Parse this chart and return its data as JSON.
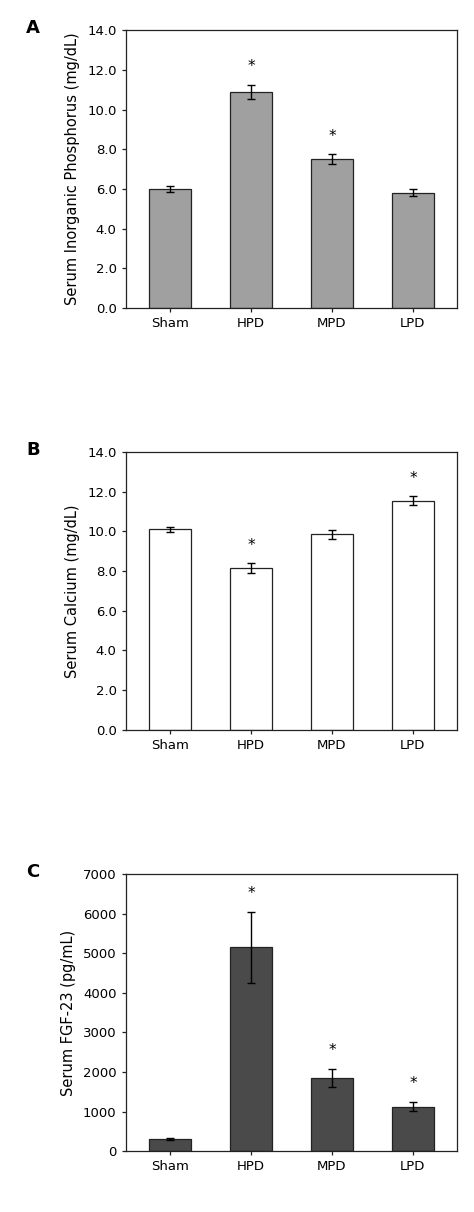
{
  "panel_A": {
    "label": "A",
    "categories": [
      "Sham",
      "HPD",
      "MPD",
      "LPD"
    ],
    "values": [
      6.0,
      10.9,
      7.5,
      5.8
    ],
    "errors": [
      0.15,
      0.35,
      0.25,
      0.18
    ],
    "bar_color": "#a0a0a0",
    "bar_edgecolor": "#222222",
    "ylabel": "Serum Inorganic Phosphorus (mg/dL)",
    "ylim": [
      0,
      14.0
    ],
    "yticks": [
      0.0,
      2.0,
      4.0,
      6.0,
      8.0,
      10.0,
      12.0,
      14.0
    ],
    "ytick_labels": [
      "0.0",
      "2.0",
      "4.0",
      "6.0",
      "8.0",
      "10.0",
      "12.0",
      "14.0"
    ],
    "sig_bars": [
      1,
      2
    ],
    "sig_symbol": "*"
  },
  "panel_B": {
    "label": "B",
    "categories": [
      "Sham",
      "HPD",
      "MPD",
      "LPD"
    ],
    "values": [
      10.1,
      8.15,
      9.85,
      11.55
    ],
    "errors": [
      0.12,
      0.25,
      0.22,
      0.22
    ],
    "bar_color": "#ffffff",
    "bar_edgecolor": "#222222",
    "ylabel": "Serum Calcium (mg/dL)",
    "ylim": [
      0,
      14.0
    ],
    "yticks": [
      0.0,
      2.0,
      4.0,
      6.0,
      8.0,
      10.0,
      12.0,
      14.0
    ],
    "ytick_labels": [
      "0.0",
      "2.0",
      "4.0",
      "6.0",
      "8.0",
      "10.0",
      "12.0",
      "14.0"
    ],
    "sig_bars": [
      1,
      3
    ],
    "sig_symbol": "*"
  },
  "panel_C": {
    "label": "C",
    "categories": [
      "Sham",
      "HPD",
      "MPD",
      "LPD"
    ],
    "values": [
      320,
      5150,
      1850,
      1130
    ],
    "errors": [
      30,
      900,
      230,
      120
    ],
    "bar_color": "#4a4a4a",
    "bar_edgecolor": "#222222",
    "ylabel": "Serum FGF-23 (pg/mL)",
    "ylim": [
      0,
      7000
    ],
    "yticks": [
      0,
      1000,
      2000,
      3000,
      4000,
      5000,
      6000,
      7000
    ],
    "ytick_labels": [
      "0",
      "1000",
      "2000",
      "3000",
      "4000",
      "5000",
      "6000",
      "7000"
    ],
    "sig_bars": [
      1,
      2,
      3
    ],
    "sig_symbol": "*"
  },
  "background_color": "#ffffff",
  "tick_fontsize": 9.5,
  "label_fontsize": 10.5,
  "panel_label_fontsize": 13,
  "bar_width": 0.52
}
